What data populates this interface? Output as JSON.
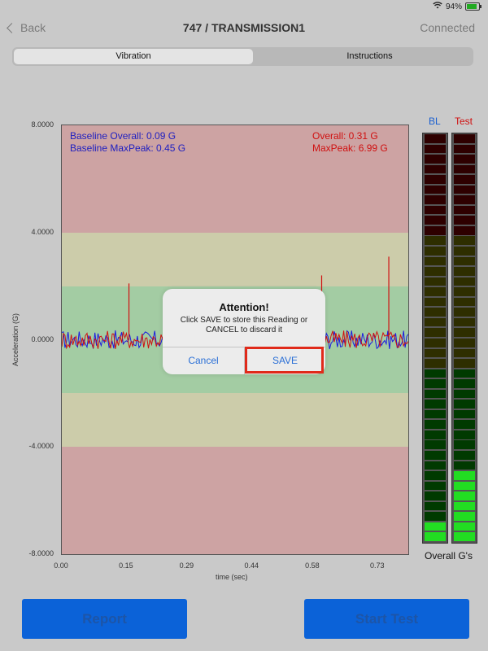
{
  "status": {
    "battery": "94%"
  },
  "nav": {
    "back_label": "Back",
    "title": "747 / TRANSMISSION1",
    "status": "Connected"
  },
  "tabs": [
    {
      "label": "Vibration",
      "active": true
    },
    {
      "label": "Instructions",
      "active": false
    }
  ],
  "chart_data": {
    "type": "line",
    "ylabel": "Acceleration (G)",
    "xlabel": "time (sec)",
    "ylim": [
      -8,
      8
    ],
    "xlim": [
      0,
      0.8
    ],
    "y_ticks": [
      "8.0000",
      "4.0000",
      "0.0000",
      "-4.0000",
      "-8.0000"
    ],
    "x_ticks": [
      "0.00",
      "0.15",
      "0.29",
      "0.44",
      "0.58",
      "0.73"
    ],
    "x_tick_values": [
      0.0,
      0.15,
      0.29,
      0.44,
      0.58,
      0.73
    ],
    "bands": [
      {
        "from": 4,
        "to": 8,
        "color": "#cda3a3"
      },
      {
        "from": 2,
        "to": 4,
        "color": "#ccccaa"
      },
      {
        "from": -2,
        "to": 2,
        "color": "#a3cca3"
      },
      {
        "from": -4,
        "to": -2,
        "color": "#ccccaa"
      },
      {
        "from": -8,
        "to": -4,
        "color": "#cda3a3"
      }
    ],
    "series": [
      {
        "name": "",
        "color": "#1a1ae0"
      },
      {
        "name": "",
        "color": "#d01010"
      }
    ],
    "spikes": [
      {
        "x": 0.155,
        "y": 2.1,
        "color": "#d01010"
      },
      {
        "x": 0.6,
        "y": 2.4,
        "color": "#d01010"
      },
      {
        "x": 0.755,
        "y": 3.1,
        "color": "#d01010"
      }
    ],
    "annotations": {
      "baseline_overall": "Baseline Overall: 0.09 G",
      "baseline_maxpeak": "Baseline MaxPeak: 0.45 G",
      "overall": "Overall: 0.31 G",
      "maxpeak": "MaxPeak: 6.99 G"
    }
  },
  "modal": {
    "title": "Attention!",
    "message": "Click SAVE to store this Reading or CANCEL to discard it",
    "cancel_label": "Cancel",
    "save_label": "SAVE"
  },
  "meters": {
    "bl_label": "BL",
    "test_label": "Test",
    "bl_label_color": "#1a5fd0",
    "test_label_color": "#d01010",
    "segments": 40,
    "bl_lit": 2,
    "test_lit": 7,
    "overall_label": "Overall G's"
  },
  "buttons": {
    "report_label": "Report",
    "start_label": "Start Test"
  }
}
